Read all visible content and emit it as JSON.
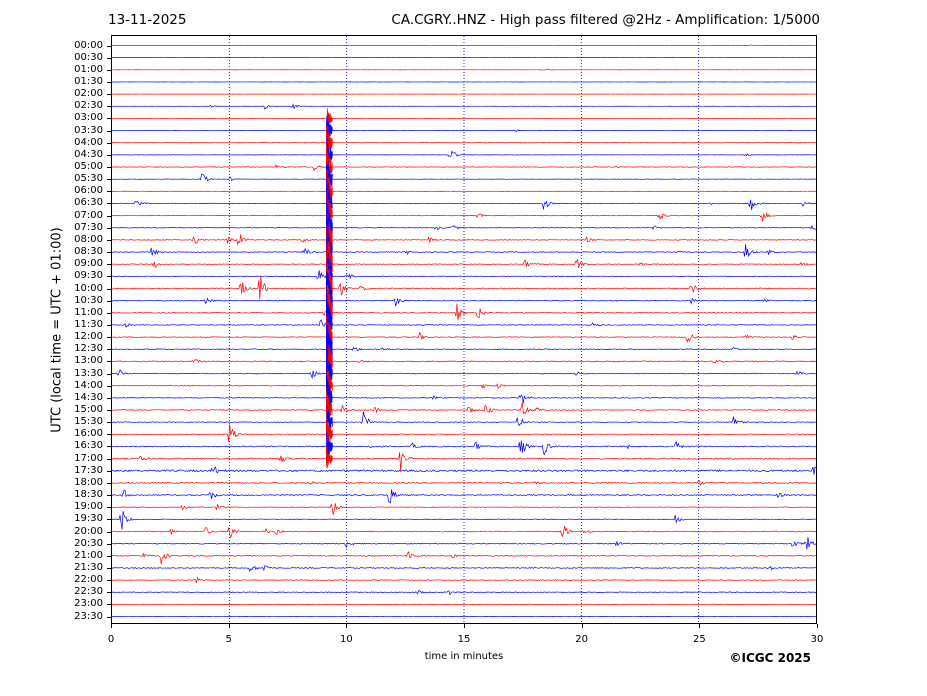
{
  "header": {
    "date": "13-11-2025",
    "title": "CA.CGRY..HNZ - High pass filtered @2Hz - Amplification: 1/5000"
  },
  "footer": {
    "copyright": "©ICGC 2025"
  },
  "colors": {
    "odd_trace": "#ff0000",
    "even_trace": "#0000ff",
    "grid": "#000080"
  },
  "chart_data": {
    "type": "line",
    "title": "CA.CGRY..HNZ - High pass filtered @2Hz - Amplification: 1/5000",
    "xlabel": "time in minutes",
    "ylabel": "UTC (local time = UTC + 01:00)",
    "xlim": [
      0,
      30
    ],
    "x_ticks": [
      "0",
      "5",
      "10",
      "15",
      "20",
      "25",
      "30"
    ],
    "x_tick_values": [
      0,
      5,
      10,
      15,
      20,
      25,
      30
    ],
    "rows": [
      "00:00",
      "00:30",
      "01:00",
      "01:30",
      "02:00",
      "02:30",
      "03:00",
      "03:30",
      "04:00",
      "04:30",
      "05:00",
      "05:30",
      "06:00",
      "06:30",
      "07:00",
      "07:30",
      "08:00",
      "08:30",
      "09:00",
      "09:30",
      "10:00",
      "10:30",
      "11:00",
      "11:30",
      "12:00",
      "12:30",
      "13:00",
      "13:30",
      "14:00",
      "14:30",
      "15:00",
      "15:30",
      "16:00",
      "16:30",
      "17:00",
      "17:30",
      "18:00",
      "18:30",
      "19:00",
      "19:30",
      "20:00",
      "20:30",
      "21:00",
      "21:30",
      "22:00",
      "22:30",
      "23:00",
      "23:30"
    ],
    "row_colors": [
      "red",
      "blue",
      "red",
      "blue",
      "red",
      "blue",
      "red",
      "blue",
      "red",
      "blue",
      "red",
      "blue",
      "red",
      "blue",
      "red",
      "blue",
      "red",
      "blue",
      "red",
      "blue",
      "red",
      "blue",
      "red",
      "blue",
      "red",
      "blue",
      "red",
      "blue",
      "red",
      "blue",
      "red",
      "blue",
      "red",
      "blue",
      "red",
      "blue",
      "red",
      "blue",
      "red",
      "blue",
      "red",
      "blue",
      "red",
      "blue",
      "red",
      "blue",
      "red",
      "blue"
    ],
    "noise_level": [
      0.05,
      0.05,
      0.05,
      0.05,
      0.05,
      0.1,
      0.05,
      0.08,
      0.12,
      0.15,
      0.3,
      0.2,
      0.15,
      0.3,
      0.25,
      0.3,
      0.4,
      0.4,
      0.35,
      0.35,
      0.6,
      0.45,
      0.45,
      0.4,
      0.4,
      0.5,
      0.55,
      0.4,
      0.4,
      0.4,
      0.5,
      0.4,
      0.4,
      0.6,
      0.7,
      1.0,
      0.6,
      0.6,
      0.3,
      0.4,
      0.5,
      0.5,
      0.5,
      0.5,
      0.4,
      0.4,
      0.2,
      0.2
    ],
    "events": [
      {
        "row": 0,
        "t": 27.2,
        "a": 0.4
      },
      {
        "row": 2,
        "t": 18.4,
        "a": 0.6
      },
      {
        "row": 5,
        "t": 6.5,
        "a": 1.0
      },
      {
        "row": 5,
        "t": 7.7,
        "a": 1.0
      },
      {
        "row": 5,
        "t": 4.2,
        "a": 0.4
      },
      {
        "row": 7,
        "t": 17.2,
        "a": 0.4
      },
      {
        "row": 9,
        "t": 14.4,
        "a": 3.0
      },
      {
        "row": 9,
        "t": 27.0,
        "a": 0.5
      },
      {
        "row": 10,
        "t": 8.6,
        "a": 1.2
      },
      {
        "row": 10,
        "t": 7.0,
        "a": 0.8
      },
      {
        "row": 10,
        "t": 21.5,
        "a": 0.5
      },
      {
        "row": 11,
        "t": 3.8,
        "a": 3.0
      },
      {
        "row": 11,
        "t": 5.0,
        "a": 0.8
      },
      {
        "row": 13,
        "t": 1.0,
        "a": 2.0
      },
      {
        "row": 13,
        "t": 18.4,
        "a": 2.5
      },
      {
        "row": 13,
        "t": 27.2,
        "a": 3.0
      },
      {
        "row": 13,
        "t": 29.4,
        "a": 2.0
      },
      {
        "row": 13,
        "t": 25.5,
        "a": 0.8
      },
      {
        "row": 14,
        "t": 15.6,
        "a": 1.0
      },
      {
        "row": 14,
        "t": 23.3,
        "a": 2.0
      },
      {
        "row": 14,
        "t": 27.7,
        "a": 2.5
      },
      {
        "row": 15,
        "t": 13.8,
        "a": 1.0
      },
      {
        "row": 15,
        "t": 14.5,
        "a": 1.0
      },
      {
        "row": 15,
        "t": 23.1,
        "a": 1.0
      },
      {
        "row": 15,
        "t": 29.8,
        "a": 1.5
      },
      {
        "row": 16,
        "t": 3.5,
        "a": 2.0
      },
      {
        "row": 16,
        "t": 5.4,
        "a": 3.0
      },
      {
        "row": 16,
        "t": 8.1,
        "a": 1.0
      },
      {
        "row": 16,
        "t": 20.2,
        "a": 1.0
      },
      {
        "row": 16,
        "t": 13.5,
        "a": 1.0
      },
      {
        "row": 16,
        "t": 4.9,
        "a": 2.0
      },
      {
        "row": 17,
        "t": 1.6,
        "a": 3.0
      },
      {
        "row": 17,
        "t": 8.2,
        "a": 2.0
      },
      {
        "row": 17,
        "t": 12.5,
        "a": 1.0
      },
      {
        "row": 17,
        "t": 27.0,
        "a": 3.0
      },
      {
        "row": 17,
        "t": 24.0,
        "a": 0.8
      },
      {
        "row": 17,
        "t": 28.0,
        "a": 0.8
      },
      {
        "row": 18,
        "t": 1.8,
        "a": 1.5
      },
      {
        "row": 18,
        "t": 17.6,
        "a": 2.0
      },
      {
        "row": 18,
        "t": 19.8,
        "a": 2.0
      },
      {
        "row": 18,
        "t": 22.5,
        "a": 0.8
      },
      {
        "row": 18,
        "t": 29.4,
        "a": 1.0
      },
      {
        "row": 19,
        "t": 8.8,
        "a": 3.0
      },
      {
        "row": 19,
        "t": 10.0,
        "a": 1.5
      },
      {
        "row": 20,
        "t": 6.3,
        "a": 6.0
      },
      {
        "row": 20,
        "t": 5.5,
        "a": 3.0
      },
      {
        "row": 20,
        "t": 9.7,
        "a": 3.0
      },
      {
        "row": 20,
        "t": 24.7,
        "a": 2.5
      },
      {
        "row": 20,
        "t": 10.6,
        "a": 1.0
      },
      {
        "row": 21,
        "t": 4.0,
        "a": 1.0
      },
      {
        "row": 21,
        "t": 12.1,
        "a": 2.0
      },
      {
        "row": 21,
        "t": 24.7,
        "a": 1.0
      },
      {
        "row": 21,
        "t": 27.8,
        "a": 0.8
      },
      {
        "row": 22,
        "t": 14.7,
        "a": 3.0
      },
      {
        "row": 22,
        "t": 15.6,
        "a": 2.5
      },
      {
        "row": 22,
        "t": 9.0,
        "a": 1.0
      },
      {
        "row": 23,
        "t": 8.9,
        "a": 2.0
      },
      {
        "row": 23,
        "t": 20.5,
        "a": 0.8
      },
      {
        "row": 23,
        "t": 0.6,
        "a": 0.6
      },
      {
        "row": 24,
        "t": 24.5,
        "a": 3.0
      },
      {
        "row": 24,
        "t": 13.1,
        "a": 1.5
      },
      {
        "row": 24,
        "t": 27.0,
        "a": 1.0
      },
      {
        "row": 24,
        "t": 29.0,
        "a": 1.0
      },
      {
        "row": 25,
        "t": 10.3,
        "a": 1.0
      },
      {
        "row": 25,
        "t": 26.5,
        "a": 0.8
      },
      {
        "row": 25,
        "t": 11.5,
        "a": 0.6
      },
      {
        "row": 26,
        "t": 25.7,
        "a": 2.5
      },
      {
        "row": 26,
        "t": 10.5,
        "a": 1.0
      },
      {
        "row": 26,
        "t": 3.5,
        "a": 1.0
      },
      {
        "row": 27,
        "t": 0.3,
        "a": 1.5
      },
      {
        "row": 27,
        "t": 8.5,
        "a": 2.0
      },
      {
        "row": 27,
        "t": 19.8,
        "a": 1.0
      },
      {
        "row": 27,
        "t": 29.2,
        "a": 0.8
      },
      {
        "row": 28,
        "t": 15.8,
        "a": 1.0
      },
      {
        "row": 28,
        "t": 16.4,
        "a": 1.0
      },
      {
        "row": 29,
        "t": 17.4,
        "a": 4.0
      },
      {
        "row": 29,
        "t": 13.7,
        "a": 0.6
      },
      {
        "row": 30,
        "t": 15.9,
        "a": 2.5
      },
      {
        "row": 30,
        "t": 9.8,
        "a": 2.0
      },
      {
        "row": 30,
        "t": 17.5,
        "a": 3.0
      },
      {
        "row": 30,
        "t": 15.2,
        "a": 1.5
      },
      {
        "row": 30,
        "t": 11.2,
        "a": 1.0
      },
      {
        "row": 30,
        "t": 18.1,
        "a": 1.0
      },
      {
        "row": 31,
        "t": 10.7,
        "a": 4.0
      },
      {
        "row": 31,
        "t": 17.3,
        "a": 3.0
      },
      {
        "row": 31,
        "t": 26.5,
        "a": 2.0
      },
      {
        "row": 32,
        "t": 5.0,
        "a": 4.0
      },
      {
        "row": 33,
        "t": 15.5,
        "a": 2.0
      },
      {
        "row": 33,
        "t": 17.4,
        "a": 4.0
      },
      {
        "row": 33,
        "t": 18.4,
        "a": 3.0
      },
      {
        "row": 33,
        "t": 24.0,
        "a": 2.0
      },
      {
        "row": 33,
        "t": 12.8,
        "a": 1.0
      },
      {
        "row": 33,
        "t": 11.0,
        "a": 0.8
      },
      {
        "row": 33,
        "t": 22.0,
        "a": 0.8
      },
      {
        "row": 34,
        "t": 12.3,
        "a": 4.0
      },
      {
        "row": 34,
        "t": 7.2,
        "a": 1.5
      },
      {
        "row": 34,
        "t": 1.2,
        "a": 1.0
      },
      {
        "row": 35,
        "t": 29.9,
        "a": 1.5
      },
      {
        "row": 35,
        "t": 4.3,
        "a": 2.0
      },
      {
        "row": 36,
        "t": 8.5,
        "a": 1.0
      },
      {
        "row": 36,
        "t": 17.9,
        "a": 1.0
      },
      {
        "row": 36,
        "t": 25.0,
        "a": 1.0
      },
      {
        "row": 37,
        "t": 4.2,
        "a": 2.0
      },
      {
        "row": 37,
        "t": 11.8,
        "a": 4.0
      },
      {
        "row": 37,
        "t": 28.4,
        "a": 1.0
      },
      {
        "row": 37,
        "t": 0.5,
        "a": 2.0
      },
      {
        "row": 38,
        "t": 4.5,
        "a": 1.5
      },
      {
        "row": 38,
        "t": 9.4,
        "a": 3.0
      },
      {
        "row": 38,
        "t": 3.0,
        "a": 1.0
      },
      {
        "row": 39,
        "t": 0.4,
        "a": 5.0
      },
      {
        "row": 39,
        "t": 24.0,
        "a": 1.5
      },
      {
        "row": 40,
        "t": 5.0,
        "a": 3.0
      },
      {
        "row": 40,
        "t": 19.2,
        "a": 3.0
      },
      {
        "row": 40,
        "t": 4.0,
        "a": 1.5
      },
      {
        "row": 40,
        "t": 2.5,
        "a": 1.0
      },
      {
        "row": 40,
        "t": 6.5,
        "a": 1.0
      },
      {
        "row": 40,
        "t": 7.0,
        "a": 1.0
      },
      {
        "row": 40,
        "t": 20.1,
        "a": 0.8
      },
      {
        "row": 41,
        "t": 10.0,
        "a": 1.5
      },
      {
        "row": 41,
        "t": 29.0,
        "a": 2.0
      },
      {
        "row": 41,
        "t": 29.6,
        "a": 3.0
      },
      {
        "row": 41,
        "t": 21.5,
        "a": 1.0
      },
      {
        "row": 42,
        "t": 2.1,
        "a": 3.0
      },
      {
        "row": 42,
        "t": 1.3,
        "a": 1.0
      },
      {
        "row": 42,
        "t": 12.6,
        "a": 1.5
      },
      {
        "row": 42,
        "t": 14.5,
        "a": 0.8
      },
      {
        "row": 43,
        "t": 5.9,
        "a": 1.5
      },
      {
        "row": 43,
        "t": 6.5,
        "a": 1.5
      },
      {
        "row": 43,
        "t": 28.0,
        "a": 1.0
      },
      {
        "row": 44,
        "t": 3.6,
        "a": 1.0
      },
      {
        "row": 45,
        "t": 14.3,
        "a": 1.5
      },
      {
        "row": 45,
        "t": 13.0,
        "a": 1.0
      }
    ],
    "big_event": {
      "row_start": 6,
      "row_end": 34,
      "t": 9.2,
      "peak_row": 20
    }
  }
}
